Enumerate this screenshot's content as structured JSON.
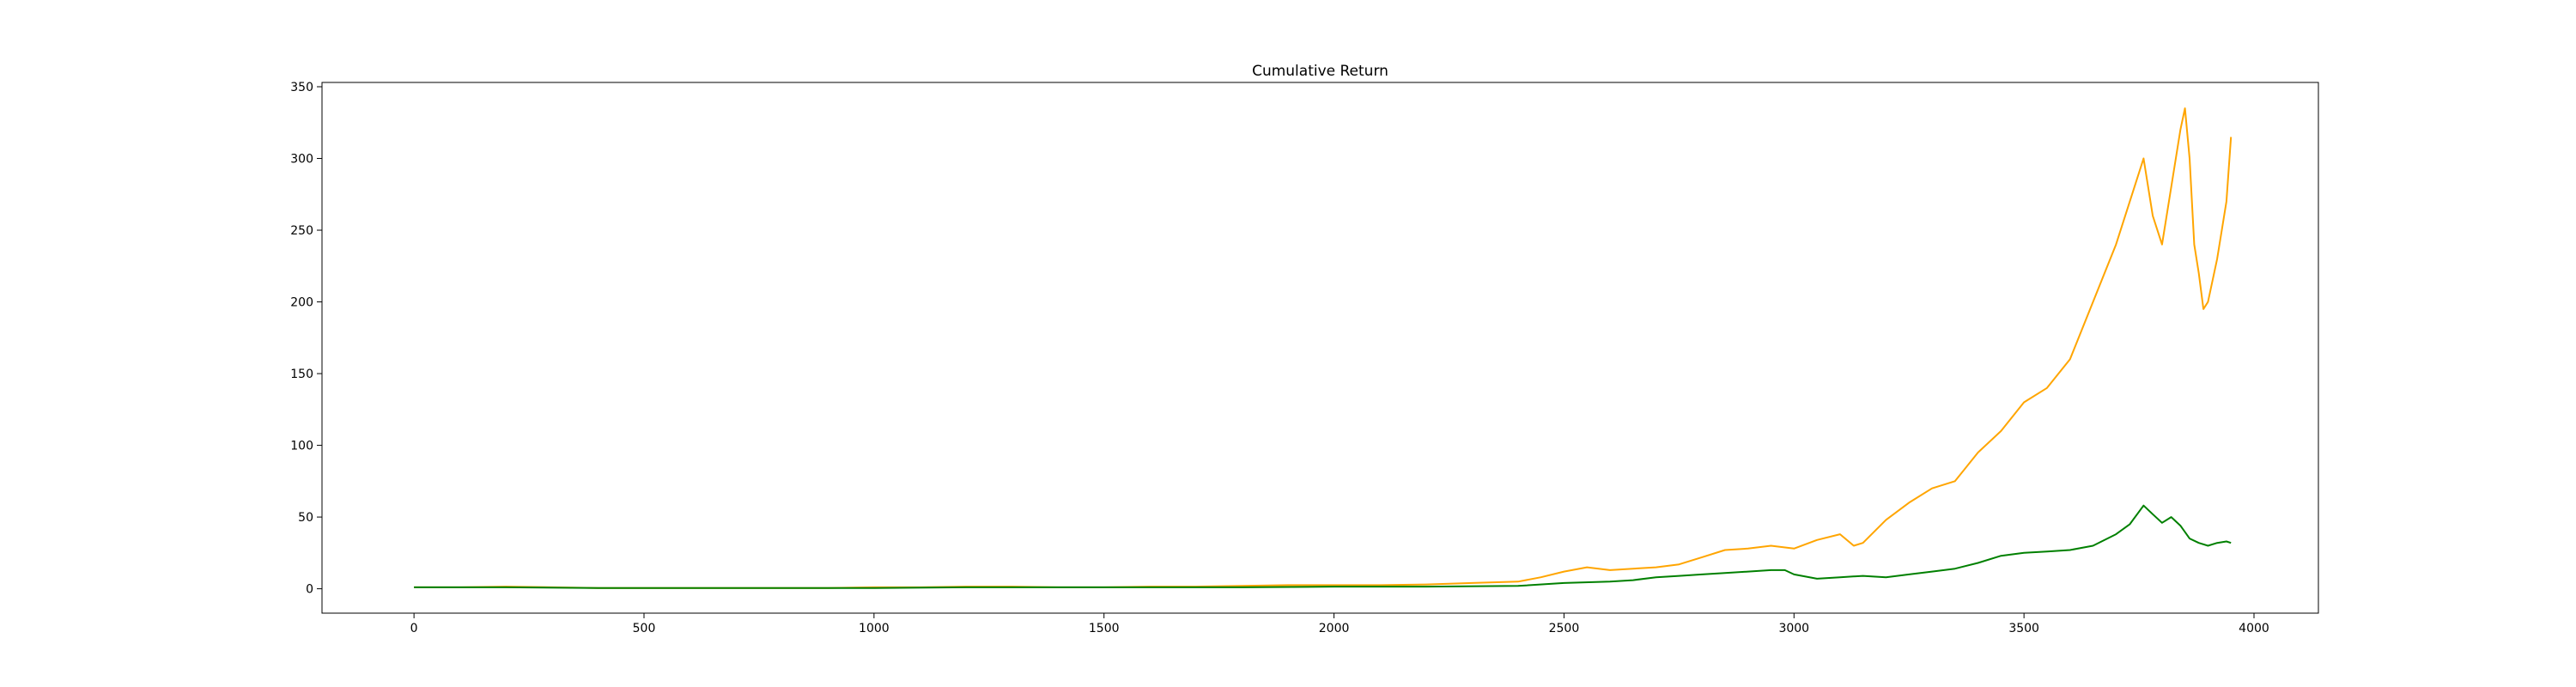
{
  "chart_data": {
    "type": "line",
    "title": "Cumulative Return",
    "xlabel": "",
    "ylabel": "",
    "xlim": [
      -200,
      4140
    ],
    "ylim": [
      -17,
      353
    ],
    "grid": false,
    "legend": "none",
    "x_ticks": [
      0,
      500,
      1000,
      1500,
      2000,
      2500,
      3000,
      3500,
      4000
    ],
    "y_ticks": [
      0,
      50,
      100,
      150,
      200,
      250,
      300,
      350
    ],
    "series": [
      {
        "name": "orange-series",
        "color": "#ffa500",
        "x": [
          0,
          100,
          200,
          300,
          400,
          500,
          600,
          700,
          800,
          900,
          1000,
          1100,
          1200,
          1300,
          1400,
          1500,
          1600,
          1700,
          1800,
          1900,
          2000,
          2100,
          2200,
          2300,
          2400,
          2450,
          2500,
          2550,
          2600,
          2650,
          2700,
          2750,
          2800,
          2850,
          2900,
          2950,
          3000,
          3050,
          3100,
          3130,
          3150,
          3200,
          3250,
          3300,
          3350,
          3400,
          3450,
          3500,
          3550,
          3600,
          3650,
          3700,
          3720,
          3740,
          3760,
          3780,
          3800,
          3820,
          3840,
          3850,
          3860,
          3870,
          3880,
          3890,
          3900,
          3920,
          3940,
          3950
        ],
        "y": [
          1,
          1,
          1.5,
          1,
          0.5,
          0.5,
          0.5,
          0.5,
          0.5,
          0.5,
          1,
          1,
          1.5,
          1.5,
          1,
          1,
          1.5,
          1.5,
          2,
          2.5,
          2.5,
          2.5,
          3,
          4,
          5,
          8,
          12,
          15,
          13,
          14,
          15,
          17,
          22,
          27,
          28,
          30,
          28,
          34,
          38,
          30,
          32,
          48,
          60,
          70,
          75,
          95,
          110,
          130,
          140,
          160,
          200,
          240,
          260,
          280,
          300,
          260,
          240,
          280,
          320,
          335,
          300,
          240,
          220,
          195,
          200,
          230,
          270,
          315
        ]
      },
      {
        "name": "green-series",
        "color": "#008000",
        "x": [
          0,
          200,
          400,
          600,
          800,
          1000,
          1200,
          1400,
          1600,
          1800,
          2000,
          2200,
          2400,
          2500,
          2600,
          2650,
          2700,
          2750,
          2800,
          2850,
          2900,
          2950,
          2980,
          3000,
          3050,
          3100,
          3150,
          3200,
          3250,
          3300,
          3350,
          3400,
          3450,
          3500,
          3550,
          3600,
          3650,
          3700,
          3730,
          3760,
          3780,
          3800,
          3820,
          3840,
          3860,
          3880,
          3900,
          3920,
          3940,
          3950
        ],
        "y": [
          1,
          1,
          0.5,
          0.5,
          0.5,
          0.5,
          1,
          1,
          1,
          1,
          1.5,
          1.5,
          2,
          4,
          5,
          6,
          8,
          9,
          10,
          11,
          12,
          13,
          13,
          10,
          7,
          8,
          9,
          8,
          10,
          12,
          14,
          18,
          23,
          25,
          26,
          27,
          30,
          38,
          45,
          58,
          52,
          46,
          50,
          44,
          35,
          32,
          30,
          32,
          33,
          32
        ]
      }
    ]
  }
}
